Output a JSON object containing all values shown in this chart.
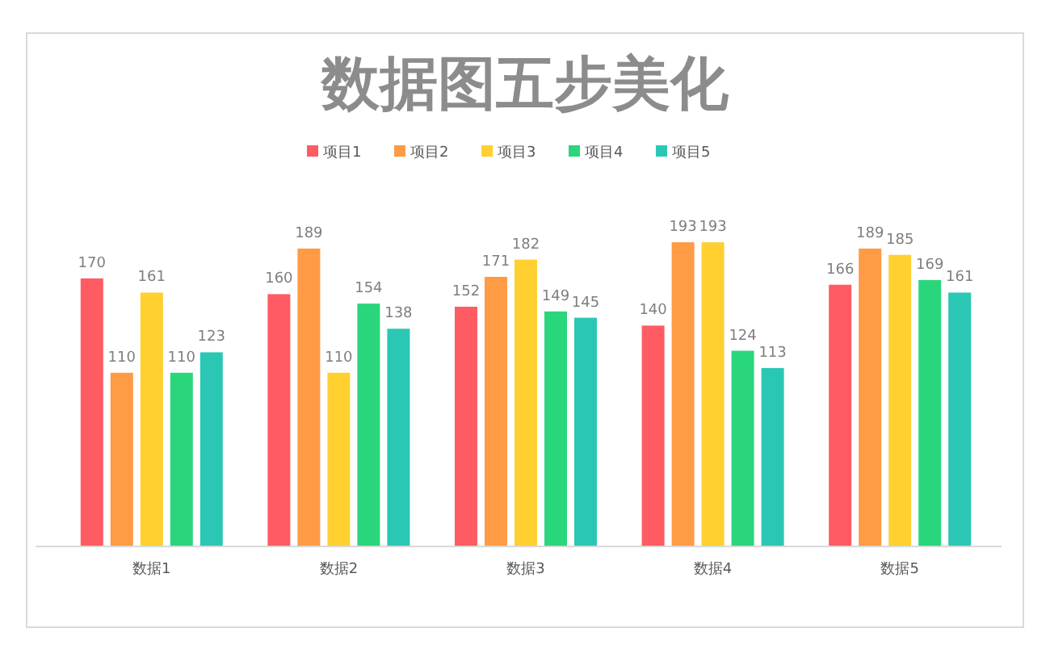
{
  "chart_data": {
    "type": "bar",
    "title": "数据图五步美化",
    "categories": [
      "数据1",
      "数据2",
      "数据3",
      "数据4",
      "数据5"
    ],
    "series": [
      {
        "name": "项目1",
        "color": "#ff5b63",
        "values": [
          170,
          160,
          152,
          140,
          166
        ]
      },
      {
        "name": "项目2",
        "color": "#ff9a45",
        "values": [
          110,
          189,
          171,
          193,
          189
        ]
      },
      {
        "name": "项目3",
        "color": "#ffd030",
        "values": [
          161,
          110,
          182,
          193,
          185
        ]
      },
      {
        "name": "项目4",
        "color": "#2ad67c",
        "values": [
          110,
          154,
          149,
          124,
          169
        ]
      },
      {
        "name": "项目5",
        "color": "#2ac8b4",
        "values": [
          123,
          138,
          145,
          113,
          161
        ]
      }
    ],
    "data_labels": true,
    "legend": "top",
    "grid": false
  }
}
